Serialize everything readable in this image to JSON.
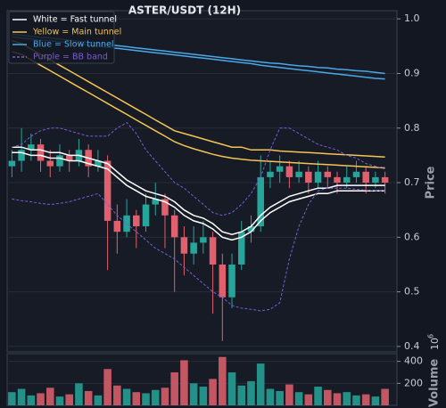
{
  "chart_data": {
    "type": "candlestick",
    "title": "ASTER/USDT (12H)",
    "ylabel": "Price",
    "up_color": "#26a69a",
    "down_color": "#e0606e",
    "grid": true,
    "legend": "upper left",
    "ylim": [
      0.39,
      1.015
    ],
    "yticks": [
      0.4,
      0.5,
      0.6,
      0.7,
      0.8,
      0.9,
      {
        "value": 1,
        "label": "1.0"
      }
    ],
    "open": [
      0.73,
      0.74,
      0.76,
      0.77,
      0.74,
      0.73,
      0.75,
      0.74,
      0.76,
      0.73,
      0.74,
      0.63,
      0.61,
      0.64,
      0.62,
      0.66,
      0.67,
      0.64,
      0.6,
      0.57,
      0.59,
      0.6,
      0.55,
      0.49,
      0.55,
      0.61,
      0.62,
      0.71,
      0.72,
      0.73,
      0.71,
      0.72,
      0.7,
      0.72,
      0.71,
      0.7,
      0.71,
      0.72,
      0.7,
      0.71
    ],
    "high": [
      0.76,
      0.8,
      0.79,
      0.78,
      0.76,
      0.77,
      0.76,
      0.78,
      0.77,
      0.76,
      0.75,
      0.66,
      0.67,
      0.65,
      0.68,
      0.7,
      0.68,
      0.65,
      0.62,
      0.62,
      0.63,
      0.61,
      0.57,
      0.57,
      0.63,
      0.64,
      0.75,
      0.74,
      0.75,
      0.74,
      0.74,
      0.73,
      0.74,
      0.73,
      0.72,
      0.73,
      0.74,
      0.73,
      0.72,
      0.72
    ],
    "low": [
      0.71,
      0.72,
      0.74,
      0.72,
      0.71,
      0.72,
      0.72,
      0.73,
      0.71,
      0.72,
      0.54,
      0.57,
      0.6,
      0.58,
      0.61,
      0.64,
      0.58,
      0.5,
      0.53,
      0.55,
      0.57,
      0.46,
      0.41,
      0.47,
      0.54,
      0.59,
      0.61,
      0.69,
      0.7,
      0.69,
      0.7,
      0.68,
      0.69,
      0.69,
      0.68,
      0.69,
      0.7,
      0.68,
      0.69,
      0.68
    ],
    "close": [
      0.74,
      0.76,
      0.77,
      0.74,
      0.73,
      0.75,
      0.74,
      0.76,
      0.73,
      0.74,
      0.63,
      0.61,
      0.64,
      0.62,
      0.66,
      0.67,
      0.64,
      0.6,
      0.57,
      0.59,
      0.6,
      0.55,
      0.49,
      0.55,
      0.61,
      0.62,
      0.71,
      0.72,
      0.73,
      0.71,
      0.72,
      0.7,
      0.72,
      0.71,
      0.7,
      0.71,
      0.72,
      0.7,
      0.71,
      0.7
    ],
    "overlays": [
      {
        "name": "White = Fast tunnel",
        "color": "#ffffff",
        "dashed": false,
        "upper": [
          0.765,
          0.765,
          0.76,
          0.76,
          0.755,
          0.755,
          0.75,
          0.75,
          0.745,
          0.74,
          0.735,
          0.72,
          0.705,
          0.695,
          0.685,
          0.68,
          0.675,
          0.665,
          0.65,
          0.64,
          0.635,
          0.625,
          0.61,
          0.605,
          0.61,
          0.62,
          0.64,
          0.655,
          0.665,
          0.675,
          0.68,
          0.685,
          0.69,
          0.69,
          0.695,
          0.695,
          0.695,
          0.695,
          0.695,
          0.695
        ],
        "lower": [
          0.755,
          0.755,
          0.75,
          0.75,
          0.745,
          0.745,
          0.74,
          0.74,
          0.735,
          0.73,
          0.725,
          0.71,
          0.695,
          0.685,
          0.675,
          0.67,
          0.665,
          0.655,
          0.64,
          0.63,
          0.625,
          0.615,
          0.6,
          0.595,
          0.6,
          0.61,
          0.63,
          0.645,
          0.655,
          0.665,
          0.67,
          0.675,
          0.68,
          0.68,
          0.685,
          0.685,
          0.685,
          0.685,
          0.685,
          0.685
        ]
      },
      {
        "name": "Yellow = Main tunnel",
        "color": "#f5c451",
        "dashed": false,
        "upper": [
          0.96,
          0.955,
          0.945,
          0.935,
          0.925,
          0.915,
          0.905,
          0.895,
          0.885,
          0.875,
          0.865,
          0.855,
          0.845,
          0.835,
          0.825,
          0.815,
          0.805,
          0.795,
          0.79,
          0.785,
          0.78,
          0.775,
          0.77,
          0.765,
          0.765,
          0.76,
          0.76,
          0.76,
          0.758,
          0.757,
          0.756,
          0.755,
          0.754,
          0.753,
          0.752,
          0.751,
          0.75,
          0.749,
          0.748,
          0.747
        ],
        "lower": [
          0.94,
          0.935,
          0.925,
          0.915,
          0.905,
          0.895,
          0.885,
          0.875,
          0.865,
          0.855,
          0.845,
          0.835,
          0.825,
          0.815,
          0.805,
          0.795,
          0.785,
          0.775,
          0.768,
          0.762,
          0.757,
          0.752,
          0.748,
          0.745,
          0.743,
          0.741,
          0.74,
          0.739,
          0.738,
          0.737,
          0.736,
          0.735,
          0.734,
          0.733,
          0.732,
          0.731,
          0.73,
          0.729,
          0.728,
          0.727
        ]
      },
      {
        "name": "Blue = Slow tunnel",
        "color": "#4aa8e8",
        "dashed": false,
        "upper": [
          0.972,
          0.97,
          0.968,
          0.966,
          0.965,
          0.963,
          0.961,
          0.959,
          0.957,
          0.955,
          0.953,
          0.951,
          0.949,
          0.947,
          0.945,
          0.943,
          0.941,
          0.939,
          0.937,
          0.935,
          0.933,
          0.931,
          0.929,
          0.927,
          0.925,
          0.923,
          0.921,
          0.919,
          0.918,
          0.916,
          0.914,
          0.913,
          0.911,
          0.91,
          0.908,
          0.907,
          0.905,
          0.904,
          0.902,
          0.9
        ],
        "lower": [
          0.967,
          0.965,
          0.963,
          0.961,
          0.96,
          0.958,
          0.956,
          0.954,
          0.952,
          0.95,
          0.948,
          0.946,
          0.944,
          0.942,
          0.94,
          0.938,
          0.936,
          0.934,
          0.932,
          0.93,
          0.928,
          0.926,
          0.924,
          0.922,
          0.92,
          0.918,
          0.915,
          0.913,
          0.911,
          0.909,
          0.907,
          0.905,
          0.903,
          0.901,
          0.899,
          0.897,
          0.895,
          0.893,
          0.891,
          0.89
        ]
      },
      {
        "name": "Purple = BB band",
        "color": "#7b5cd6",
        "dashed": true,
        "upper": [
          0.765,
          0.77,
          0.785,
          0.795,
          0.8,
          0.8,
          0.795,
          0.79,
          0.785,
          0.785,
          0.785,
          0.8,
          0.81,
          0.79,
          0.76,
          0.74,
          0.72,
          0.7,
          0.69,
          0.675,
          0.66,
          0.645,
          0.64,
          0.645,
          0.66,
          0.68,
          0.71,
          0.76,
          0.8,
          0.8,
          0.79,
          0.78,
          0.77,
          0.765,
          0.76,
          0.75,
          0.745,
          0.735,
          0.73,
          0.725
        ],
        "lower": [
          0.67,
          0.667,
          0.665,
          0.662,
          0.66,
          0.662,
          0.665,
          0.67,
          0.675,
          0.68,
          0.66,
          0.64,
          0.625,
          0.61,
          0.595,
          0.58,
          0.57,
          0.56,
          0.545,
          0.53,
          0.515,
          0.5,
          0.49,
          0.475,
          0.47,
          0.468,
          0.465,
          0.468,
          0.48,
          0.56,
          0.62,
          0.66,
          0.685,
          0.69,
          0.69,
          0.69,
          0.688,
          0.686,
          0.685,
          0.685
        ]
      }
    ],
    "volume": {
      "label": "Volume",
      "offset_base": "10",
      "offset_exponent": "6",
      "ylim": [
        0,
        470
      ],
      "yticks": [
        200,
        400
      ],
      "values": [
        120,
        150,
        90,
        110,
        160,
        80,
        100,
        200,
        130,
        90,
        330,
        180,
        150,
        120,
        110,
        140,
        160,
        300,
        410,
        200,
        170,
        240,
        440,
        300,
        180,
        220,
        380,
        150,
        130,
        190,
        120,
        100,
        170,
        140,
        110,
        120,
        90,
        100,
        80,
        150
      ]
    }
  }
}
